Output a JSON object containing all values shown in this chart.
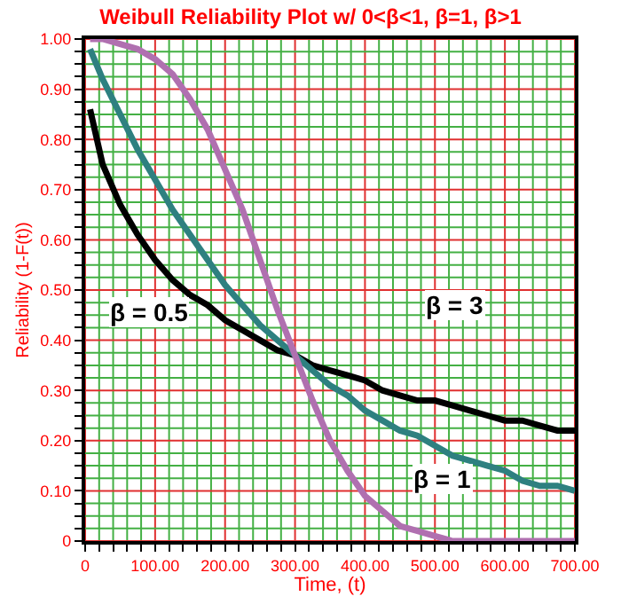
{
  "chart_data": {
    "type": "line",
    "title": "Weibull Reliability Plot w/ 0<β<1, β=1, β>1",
    "xlabel": "Time, (t)",
    "ylabel": "Reliability (1-F(t))",
    "x": [
      7,
      25,
      50,
      75,
      100,
      125,
      150,
      175,
      200,
      225,
      250,
      275,
      300,
      325,
      350,
      375,
      400,
      425,
      450,
      475,
      500,
      525,
      550,
      575,
      600,
      625,
      650,
      675,
      700
    ],
    "series": [
      {
        "color": "#000000",
        "values": [
          0.86,
          0.75,
          0.67,
          0.61,
          0.56,
          0.52,
          0.49,
          0.47,
          0.44,
          0.42,
          0.4,
          0.38,
          0.37,
          0.35,
          0.34,
          0.33,
          0.32,
          0.3,
          0.29,
          0.28,
          0.28,
          0.27,
          0.26,
          0.25,
          0.24,
          0.24,
          0.23,
          0.22,
          0.22
        ]
      },
      {
        "color": "#2e8080",
        "values": [
          0.98,
          0.92,
          0.85,
          0.78,
          0.72,
          0.66,
          0.61,
          0.56,
          0.51,
          0.47,
          0.43,
          0.4,
          0.37,
          0.34,
          0.31,
          0.29,
          0.26,
          0.24,
          0.22,
          0.21,
          0.19,
          0.17,
          0.16,
          0.15,
          0.14,
          0.12,
          0.11,
          0.11,
          0.1
        ]
      },
      {
        "color": "#b070b0",
        "values": [
          1.0,
          1.0,
          0.99,
          0.98,
          0.96,
          0.93,
          0.88,
          0.82,
          0.74,
          0.66,
          0.56,
          0.46,
          0.37,
          0.28,
          0.2,
          0.14,
          0.09,
          0.06,
          0.03,
          0.02,
          0.01,
          0.0,
          0.0,
          0.0,
          0.0,
          0.0,
          0.0,
          0.0,
          0.0
        ]
      }
    ],
    "annotations": [
      "β = 0.5",
      "β = 3",
      "β = 1"
    ],
    "xlim": [
      0,
      700
    ],
    "xticks": [
      {
        "value": 20,
        "label": null
      },
      {
        "value": 40,
        "label": null
      },
      {
        "value": 60,
        "label": null
      },
      {
        "value": 80,
        "label": null
      },
      {
        "value": 120,
        "label": null
      },
      {
        "value": 140,
        "label": null
      },
      {
        "value": 160,
        "label": null
      },
      {
        "value": 180,
        "label": null
      },
      {
        "value": 220,
        "label": null
      },
      {
        "value": 240,
        "label": null
      },
      {
        "value": 260,
        "label": null
      },
      {
        "value": 280,
        "label": null
      },
      {
        "value": 320,
        "label": null
      },
      {
        "value": 340,
        "label": null
      },
      {
        "value": 360,
        "label": null
      },
      {
        "value": 380,
        "label": null
      },
      {
        "value": 420,
        "label": null
      },
      {
        "value": 440,
        "label": null
      },
      {
        "value": 460,
        "label": null
      },
      {
        "value": 480,
        "label": null
      },
      {
        "value": 520,
        "label": null
      },
      {
        "value": 540,
        "label": null
      },
      {
        "value": 560,
        "label": null
      },
      {
        "value": 580,
        "label": null
      },
      {
        "value": 620,
        "label": null
      },
      {
        "value": 640,
        "label": null
      },
      {
        "value": 660,
        "label": null
      },
      {
        "value": 680,
        "label": null
      },
      0,
      {
        "value": 100,
        "label": "100.00"
      },
      {
        "value": 200,
        "label": "200.00"
      },
      {
        "value": 300,
        "label": "300.00"
      },
      {
        "value": 400,
        "label": "400.00"
      },
      {
        "value": 500,
        "label": "500.00"
      },
      {
        "value": 600,
        "label": "600.00"
      },
      {
        "value": 700,
        "label": "700.00"
      }
    ],
    "ylim": [
      0,
      1
    ],
    "yticks": [
      {
        "value": 0.025,
        "label": null
      },
      {
        "value": 0.05,
        "label": null
      },
      {
        "value": 0.075,
        "label": null
      },
      {
        "value": 0.125,
        "label": null
      },
      {
        "value": 0.15,
        "label": null
      },
      {
        "value": 0.175,
        "label": null
      },
      {
        "value": 0.225,
        "label": null
      },
      {
        "value": 0.25,
        "label": null
      },
      {
        "value": 0.275,
        "label": null
      },
      {
        "value": 0.325,
        "label": null
      },
      {
        "value": 0.35,
        "label": null
      },
      {
        "value": 0.375,
        "label": null
      },
      {
        "value": 0.425,
        "label": null
      },
      {
        "value": 0.45,
        "label": null
      },
      {
        "value": 0.475,
        "label": null
      },
      {
        "value": 0.525,
        "label": null
      },
      {
        "value": 0.55,
        "label": null
      },
      {
        "value": 0.575,
        "label": null
      },
      {
        "value": 0.625,
        "label": null
      },
      {
        "value": 0.65,
        "label": null
      },
      {
        "value": 0.675,
        "label": null
      },
      {
        "value": 0.725,
        "label": null
      },
      {
        "value": 0.75,
        "label": null
      },
      {
        "value": 0.775,
        "label": null
      },
      {
        "value": 0.825,
        "label": null
      },
      {
        "value": 0.85,
        "label": null
      },
      {
        "value": 0.875,
        "label": null
      },
      {
        "value": 0.925,
        "label": null
      },
      {
        "value": 0.95,
        "label": null
      },
      {
        "value": 0.975,
        "label": null
      },
      0,
      {
        "value": 0.1,
        "label": "0.10"
      },
      {
        "value": 0.2,
        "label": "0.20"
      },
      {
        "value": 0.3,
        "label": "0.30"
      },
      {
        "value": 0.4,
        "label": "0.40"
      },
      {
        "value": 0.5,
        "label": "0.50"
      },
      {
        "value": 0.6,
        "label": "0.60"
      },
      {
        "value": 0.7,
        "label": "0.70"
      },
      {
        "value": 0.8,
        "label": "0.80"
      },
      {
        "value": 0.9,
        "label": "0.90"
      },
      {
        "value": 1.0,
        "label": "1.00"
      }
    ],
    "grid": true,
    "marker": "none",
    "line_style": "solid"
  }
}
